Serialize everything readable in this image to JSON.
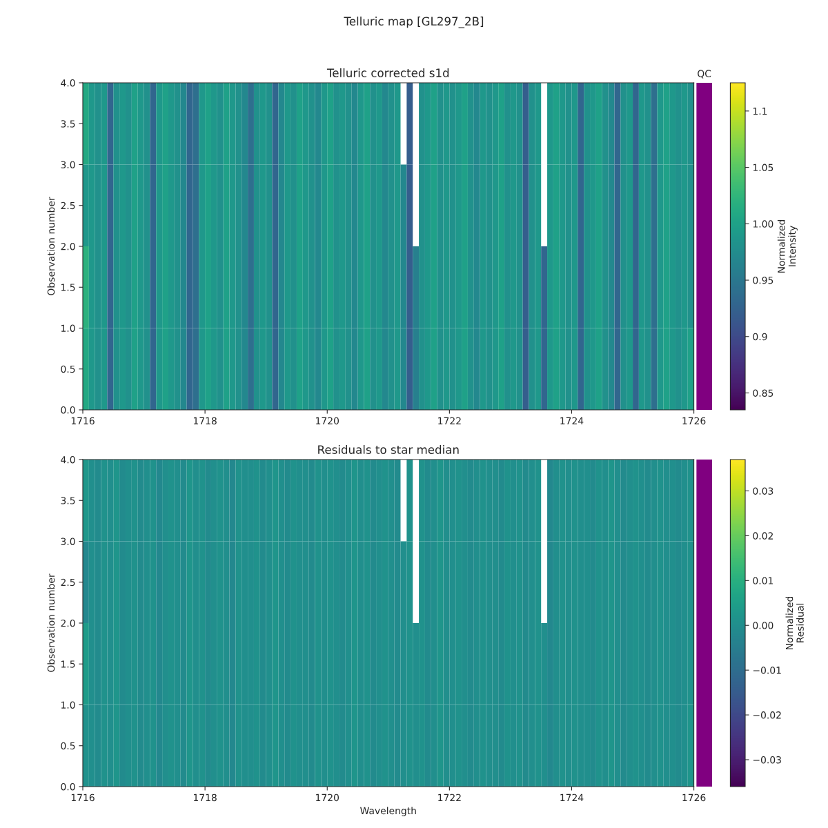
{
  "chart_data": [
    {
      "type": "heatmap",
      "title": "Telluric corrected s1d",
      "ylabel": "Observation number",
      "clabel": "Normalized\nIntensity",
      "annotations": [
        "Telluric map [GL297_2B]"
      ],
      "xlim": [
        1716,
        1726
      ],
      "xticks": [
        1716,
        1718,
        1720,
        1722,
        1724,
        1726
      ],
      "ylim": [
        0,
        4
      ],
      "yticks": [
        {
          "value": 0,
          "label": "0.0"
        },
        {
          "value": 0.5,
          "label": "0.5"
        },
        {
          "value": 1,
          "label": "1.0"
        },
        {
          "value": 1.5,
          "label": "1.5"
        },
        {
          "value": 2,
          "label": "2.0"
        },
        {
          "value": 2.5,
          "label": "2.5"
        },
        {
          "value": 3,
          "label": "3.0"
        },
        {
          "value": 3.5,
          "label": "3.5"
        },
        {
          "value": 4,
          "label": "4.0"
        }
      ],
      "clim": [
        0.835,
        1.125
      ],
      "cticks": [
        0.85,
        0.9,
        0.95,
        {
          "value": 1,
          "label": "1.00"
        },
        1.05,
        1.1
      ],
      "cells": [
        [
          1.01,
          0.99,
          0.98,
          0.99,
          0.93,
          0.98,
          0.99,
          0.98,
          1.0,
          0.99,
          0.98,
          0.93,
          0.99,
          1.0,
          0.99,
          0.98,
          0.97,
          0.93,
          0.94,
          0.99,
          1.0,
          0.99,
          0.98,
          1.0,
          0.99,
          0.98,
          0.97,
          0.94,
          0.98,
          0.99,
          0.98,
          0.93,
          0.97,
          0.99,
          0.98,
          1.0,
          0.99,
          0.98,
          0.97,
          0.99,
          1.0,
          0.98,
          0.99,
          0.98,
          0.97,
          0.99,
          1.0,
          0.98,
          0.99,
          0.97,
          0.98,
          0.99,
          null,
          0.92,
          null,
          0.98,
          0.99,
          1.0,
          0.98,
          0.99,
          0.98,
          0.99,
          1.0,
          0.98,
          0.97,
          0.99,
          0.98,
          0.99,
          1.0,
          0.98,
          0.99,
          0.98,
          0.92,
          0.98,
          0.99,
          null,
          0.99,
          1.0,
          0.99,
          0.98,
          0.99,
          0.93,
          0.98,
          0.99,
          1.0,
          0.98,
          0.97,
          0.93,
          0.98,
          0.99,
          0.93,
          0.99,
          0.98,
          0.94,
          0.99,
          1.0,
          0.99,
          0.98,
          0.99,
          0.98
        ],
        [
          0.99,
          0.99,
          0.98,
          0.99,
          0.93,
          0.98,
          0.99,
          0.98,
          1.0,
          0.99,
          0.98,
          0.93,
          0.99,
          1.0,
          0.99,
          0.98,
          0.97,
          0.93,
          0.94,
          0.99,
          1.0,
          0.99,
          0.98,
          1.0,
          0.99,
          0.98,
          0.97,
          0.94,
          0.98,
          0.99,
          0.98,
          0.93,
          0.97,
          0.99,
          0.98,
          1.0,
          0.99,
          0.98,
          0.97,
          0.99,
          1.0,
          0.98,
          0.99,
          0.98,
          0.97,
          0.99,
          1.0,
          0.98,
          0.99,
          0.97,
          0.98,
          0.99,
          0.97,
          0.92,
          null,
          0.98,
          0.99,
          1.0,
          0.98,
          0.99,
          0.98,
          0.99,
          1.0,
          0.98,
          0.97,
          0.99,
          0.98,
          0.99,
          1.0,
          0.98,
          0.99,
          0.98,
          0.92,
          0.98,
          0.99,
          null,
          0.99,
          1.0,
          0.99,
          0.98,
          0.99,
          0.93,
          0.98,
          0.99,
          1.0,
          0.98,
          0.97,
          0.93,
          0.98,
          0.99,
          0.93,
          0.99,
          0.98,
          0.94,
          0.99,
          1.0,
          0.99,
          0.98,
          0.99,
          0.98
        ],
        [
          1.02,
          0.99,
          0.98,
          0.99,
          0.93,
          0.98,
          0.99,
          0.98,
          1.0,
          0.99,
          0.98,
          0.93,
          0.99,
          1.0,
          0.99,
          0.98,
          0.97,
          0.93,
          0.94,
          0.99,
          1.0,
          0.99,
          0.98,
          1.0,
          0.99,
          0.98,
          0.97,
          0.94,
          0.98,
          0.99,
          0.98,
          0.93,
          0.97,
          0.99,
          0.98,
          1.0,
          0.99,
          0.98,
          0.97,
          0.99,
          1.0,
          0.98,
          0.99,
          0.98,
          0.97,
          0.99,
          1.0,
          0.98,
          0.99,
          0.97,
          0.98,
          0.99,
          0.97,
          0.92,
          0.96,
          0.98,
          0.99,
          1.0,
          0.98,
          0.99,
          0.98,
          0.99,
          1.0,
          0.98,
          0.97,
          0.99,
          0.98,
          0.99,
          1.0,
          0.98,
          0.99,
          0.98,
          0.92,
          0.98,
          0.99,
          0.93,
          0.99,
          1.0,
          0.99,
          0.98,
          0.99,
          0.93,
          0.98,
          0.99,
          1.0,
          0.98,
          0.97,
          0.93,
          0.98,
          0.99,
          0.93,
          0.99,
          0.98,
          0.94,
          0.99,
          1.0,
          0.99,
          0.98,
          0.99,
          0.98
        ],
        [
          1.01,
          0.99,
          0.98,
          0.99,
          0.93,
          0.98,
          0.99,
          0.98,
          1.0,
          0.99,
          0.98,
          0.93,
          0.99,
          1.0,
          0.99,
          0.98,
          0.97,
          0.93,
          0.94,
          0.99,
          1.0,
          0.99,
          0.98,
          1.0,
          0.99,
          0.98,
          0.97,
          0.94,
          0.98,
          0.99,
          0.98,
          0.93,
          0.97,
          0.99,
          0.98,
          1.0,
          0.99,
          0.98,
          0.97,
          0.99,
          1.0,
          0.98,
          0.99,
          0.98,
          0.97,
          0.99,
          1.0,
          0.98,
          0.99,
          0.97,
          0.98,
          0.99,
          0.97,
          0.92,
          0.96,
          0.98,
          0.99,
          1.0,
          0.98,
          0.99,
          0.98,
          0.99,
          1.0,
          0.98,
          0.97,
          0.99,
          0.98,
          0.99,
          1.0,
          0.98,
          0.99,
          0.98,
          0.92,
          0.98,
          0.99,
          0.93,
          0.99,
          1.0,
          0.99,
          0.98,
          0.99,
          0.93,
          0.98,
          0.99,
          1.0,
          0.98,
          0.97,
          0.93,
          0.98,
          0.99,
          0.93,
          0.99,
          0.98,
          0.94,
          0.99,
          1.0,
          0.99,
          0.98,
          0.99,
          1.0
        ]
      ]
    },
    {
      "type": "other",
      "title": "QC",
      "colors": [
        "#800080"
      ]
    },
    {
      "type": "heatmap",
      "title": "Residuals to star median",
      "xlabel": "Wavelength",
      "ylabel": "Observation number",
      "clabel": "Normalized\nResidual",
      "xlim": [
        1716,
        1726
      ],
      "xticks": [
        1716,
        1718,
        1720,
        1722,
        1724,
        1726
      ],
      "ylim": [
        0,
        4
      ],
      "yticks": [
        {
          "value": 0,
          "label": "0.0"
        },
        {
          "value": 0.5,
          "label": "0.5"
        },
        {
          "value": 1,
          "label": "1.0"
        },
        {
          "value": 1.5,
          "label": "1.5"
        },
        {
          "value": 2,
          "label": "2.0"
        },
        {
          "value": 2.5,
          "label": "2.5"
        },
        {
          "value": 3,
          "label": "3.0"
        },
        {
          "value": 3.5,
          "label": "3.5"
        },
        {
          "value": 4,
          "label": "4.0"
        }
      ],
      "clim": [
        -0.036,
        0.037
      ],
      "cticks": [
        {
          "value": -0.03,
          "label": "−0.03"
        },
        {
          "value": -0.02,
          "label": "−0.02"
        },
        {
          "value": -0.01,
          "label": "−0.01"
        },
        {
          "value": 0,
          "label": "0.00"
        },
        {
          "value": 0.01,
          "label": "0.01"
        },
        {
          "value": 0.02,
          "label": "0.02"
        },
        {
          "value": 0.03,
          "label": "0.03"
        }
      ],
      "cells": [
        [
          0.003,
          0.0,
          -0.001,
          0.001,
          0.0,
          0.002,
          -0.001,
          0.0,
          0.001,
          -0.001,
          0.0,
          0.001,
          -0.002,
          0.0,
          0.001,
          0.0,
          -0.001,
          0.002,
          0.0,
          0.001,
          -0.001,
          0.0,
          0.001,
          0.0,
          -0.002,
          0.001,
          0.0,
          0.0,
          0.001,
          -0.001,
          0.0,
          0.002,
          0.0,
          -0.001,
          0.001,
          0.0,
          0.0,
          -0.001,
          0.001,
          0.0,
          0.001,
          0.0,
          -0.001,
          0.0,
          0.002,
          0.0,
          0.001,
          -0.001,
          0.0,
          0.001,
          0.0,
          -0.001,
          null,
          0.001,
          null,
          0.001,
          -0.001,
          0.0,
          0.002,
          0.0,
          0.0,
          0.001,
          0.0,
          -0.001,
          0.0,
          0.001,
          0.0,
          0.0,
          -0.001,
          0.001,
          0.0,
          0.001,
          -0.001,
          0.0,
          0.001,
          null,
          -0.002,
          0.0,
          0.001,
          0.0,
          0.001,
          0.0,
          0.0,
          -0.001,
          0.001,
          0.0,
          0.002,
          0.0,
          -0.001,
          0.0,
          0.001,
          0.0,
          -0.001,
          0.0,
          0.001,
          0.0,
          0.0,
          -0.001,
          0.0,
          0.001
        ],
        [
          -0.002,
          0.0,
          -0.001,
          0.001,
          0.0,
          0.002,
          -0.001,
          0.0,
          0.001,
          -0.001,
          0.0,
          0.001,
          -0.002,
          0.0,
          0.001,
          0.0,
          -0.001,
          0.002,
          0.0,
          0.001,
          -0.001,
          0.0,
          0.001,
          0.0,
          -0.002,
          0.001,
          0.0,
          0.0,
          0.001,
          -0.001,
          0.0,
          0.002,
          0.0,
          -0.001,
          0.001,
          0.0,
          0.0,
          -0.001,
          0.001,
          0.0,
          0.001,
          0.0,
          -0.001,
          0.0,
          0.002,
          0.0,
          0.001,
          -0.001,
          0.0,
          0.001,
          0.0,
          -0.001,
          0.0,
          0.001,
          null,
          0.001,
          -0.001,
          0.0,
          0.002,
          0.0,
          0.0,
          0.001,
          0.0,
          -0.001,
          0.0,
          0.001,
          0.0,
          0.0,
          -0.001,
          0.001,
          0.0,
          0.001,
          -0.001,
          0.0,
          0.001,
          null,
          -0.002,
          0.0,
          0.001,
          0.0,
          0.001,
          0.0,
          0.0,
          -0.001,
          0.001,
          0.0,
          0.002,
          0.0,
          -0.001,
          0.0,
          0.001,
          0.0,
          -0.001,
          0.0,
          0.001,
          0.0,
          0.0,
          -0.001,
          0.0,
          0.001
        ],
        [
          0.004,
          0.0,
          -0.001,
          0.001,
          0.0,
          0.002,
          -0.001,
          0.0,
          0.001,
          -0.001,
          0.0,
          0.001,
          -0.002,
          0.0,
          0.001,
          0.0,
          -0.001,
          0.002,
          0.0,
          0.001,
          -0.001,
          0.0,
          0.001,
          0.0,
          -0.002,
          0.001,
          0.0,
          0.0,
          0.001,
          -0.001,
          0.0,
          0.002,
          0.0,
          -0.001,
          0.001,
          0.0,
          0.0,
          -0.001,
          0.001,
          0.0,
          0.001,
          0.0,
          -0.001,
          0.0,
          0.002,
          0.0,
          0.001,
          -0.001,
          0.0,
          0.001,
          0.0,
          -0.001,
          0.0,
          0.001,
          0.0,
          0.001,
          -0.001,
          0.0,
          0.002,
          0.0,
          0.0,
          0.001,
          0.0,
          -0.001,
          0.0,
          0.001,
          0.0,
          0.0,
          -0.001,
          0.001,
          0.0,
          0.001,
          -0.001,
          0.0,
          0.001,
          0.0,
          -0.002,
          0.0,
          0.001,
          0.0,
          0.001,
          0.0,
          0.0,
          -0.001,
          0.001,
          0.0,
          0.002,
          0.0,
          -0.001,
          0.0,
          0.001,
          0.0,
          -0.001,
          0.0,
          0.001,
          0.0,
          0.0,
          -0.001,
          0.0,
          0.001
        ],
        [
          0.001,
          0.0,
          -0.001,
          0.001,
          0.0,
          0.002,
          -0.001,
          0.0,
          0.001,
          -0.001,
          0.0,
          0.001,
          -0.002,
          0.0,
          0.001,
          0.0,
          -0.001,
          0.002,
          0.0,
          0.001,
          -0.001,
          0.0,
          0.001,
          0.0,
          -0.002,
          0.001,
          0.0,
          0.0,
          0.001,
          -0.001,
          0.0,
          0.002,
          0.0,
          -0.001,
          0.001,
          0.0,
          0.0,
          -0.001,
          0.001,
          0.0,
          0.001,
          0.0,
          -0.001,
          0.0,
          0.002,
          0.0,
          0.001,
          -0.001,
          0.0,
          0.001,
          0.0,
          -0.001,
          0.0,
          0.001,
          0.0,
          0.001,
          -0.001,
          0.0,
          0.002,
          0.0,
          0.0,
          0.001,
          0.0,
          -0.001,
          0.0,
          0.001,
          0.0,
          0.0,
          -0.001,
          0.001,
          0.0,
          0.001,
          -0.001,
          0.0,
          0.001,
          0.0,
          -0.002,
          0.0,
          0.001,
          0.0,
          0.001,
          0.0,
          0.0,
          -0.001,
          0.001,
          0.0,
          0.002,
          0.0,
          -0.001,
          0.0,
          0.001,
          0.0,
          -0.001,
          0.0,
          0.001,
          0.0,
          0.0,
          -0.001,
          0.0,
          0.002
        ]
      ]
    },
    {
      "type": "other",
      "colors": [
        "#800080"
      ]
    }
  ]
}
